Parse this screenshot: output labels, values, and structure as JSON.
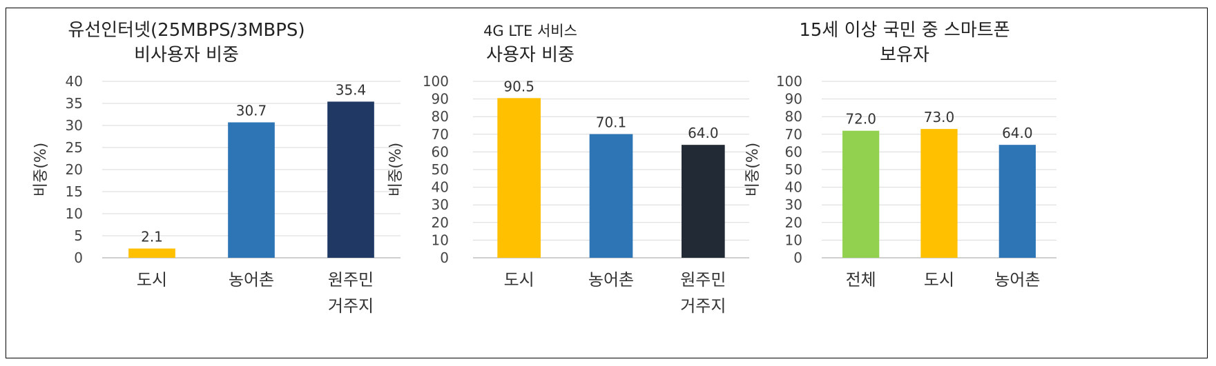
{
  "chart_data": [
    {
      "type": "bar",
      "title": [
        "유선인터넷(25MBPS/3MBPS)",
        "비사용자 비중"
      ],
      "ylabel": "비중(%)",
      "ylim": [
        0,
        40
      ],
      "ytick_step": 5,
      "categories": [
        [
          "도시"
        ],
        [
          "농어촌"
        ],
        [
          "원주민",
          "거주지"
        ]
      ],
      "values": [
        2.1,
        30.7,
        35.4
      ],
      "data_labels": [
        "2.1",
        "30.7",
        "35.4"
      ],
      "colors": [
        "#FFC000",
        "#2E75B6",
        "#1F3864"
      ],
      "grid": true
    },
    {
      "type": "bar",
      "title": [
        "4G LTE 서비스",
        "사용자 비중"
      ],
      "ylabel": "비중(%)",
      "ylim": [
        0,
        100
      ],
      "ytick_step": 10,
      "categories": [
        [
          "도시"
        ],
        [
          "농어촌"
        ],
        [
          "원주민",
          "거주지"
        ]
      ],
      "values": [
        90.5,
        70.1,
        64.0
      ],
      "data_labels": [
        "90.5",
        "70.1",
        "64.0"
      ],
      "colors": [
        "#FFC000",
        "#2E75B6",
        "#222A35"
      ],
      "grid": true
    },
    {
      "type": "bar",
      "title": [
        "15세 이상 국민 중 스마트폰",
        "보유자"
      ],
      "ylabel": "비중(%)",
      "ylim": [
        0,
        100
      ],
      "ytick_step": 10,
      "categories": [
        [
          "전체"
        ],
        [
          "도시"
        ],
        [
          "농어촌"
        ]
      ],
      "values": [
        72.0,
        73.0,
        64.0
      ],
      "data_labels": [
        "72.0",
        "73.0",
        "64.0"
      ],
      "colors": [
        "#92D050",
        "#FFC000",
        "#2E75B6"
      ],
      "grid": true
    }
  ]
}
